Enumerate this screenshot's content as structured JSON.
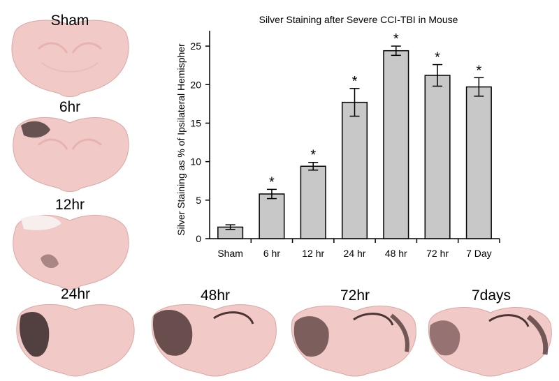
{
  "panels": {
    "sham": "Sham",
    "hr6": "6hr",
    "hr12": "12hr",
    "hr24": "24hr",
    "hr48": "48hr",
    "hr72": "72hr",
    "days7": "7days"
  },
  "chart_data": {
    "type": "bar",
    "title": "Silver Staining after Severe CCI-TBI in Mouse",
    "ylabel": "Silver Staining as % of Ipsilateral Hemispher",
    "xlabel": "",
    "categories": [
      "Sham",
      "6 hr",
      "12 hr",
      "24 hr",
      "48 hr",
      "72 hr",
      "7 Day"
    ],
    "values": [
      1.5,
      5.8,
      9.4,
      17.7,
      24.4,
      21.2,
      19.7
    ],
    "errors": [
      0.3,
      0.6,
      0.5,
      1.8,
      0.6,
      1.4,
      1.2
    ],
    "significant": [
      false,
      true,
      true,
      true,
      true,
      true,
      true
    ],
    "significance_marker": "*",
    "ylim": [
      0,
      27
    ],
    "yticks": [
      "0",
      "5",
      "10",
      "15",
      "20",
      "25"
    ],
    "bar_color": "#c8c8c8",
    "grid": false
  }
}
